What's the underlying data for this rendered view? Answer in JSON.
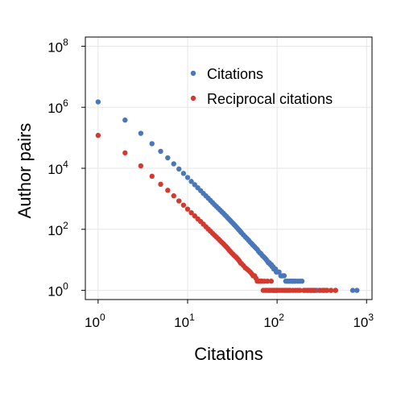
{
  "chart_data": {
    "type": "scatter",
    "xlabel": "Citations",
    "ylabel": "Author pairs",
    "xscale": "log",
    "yscale": "log",
    "xlim": [
      0.72,
      1150
    ],
    "ylim": [
      0.5,
      200000000
    ],
    "x_ticks": [
      {
        "base": "10",
        "exp": "0",
        "value": 1
      },
      {
        "base": "10",
        "exp": "1",
        "value": 10
      },
      {
        "base": "10",
        "exp": "2",
        "value": 100
      },
      {
        "base": "10",
        "exp": "3",
        "value": 1000
      }
    ],
    "y_ticks": [
      {
        "base": "10",
        "exp": "0",
        "value": 1
      },
      {
        "base": "10",
        "exp": "2",
        "value": 100
      },
      {
        "base": "10",
        "exp": "4",
        "value": 10000
      },
      {
        "base": "10",
        "exp": "6",
        "value": 1000000
      },
      {
        "base": "10",
        "exp": "8",
        "value": 100000000
      }
    ],
    "grid": true,
    "legend_position": "top-right",
    "series": [
      {
        "name": "Citations",
        "color": "#4a77b9",
        "x": [
          1,
          2,
          3,
          4,
          5,
          6,
          7,
          8,
          9,
          10,
          11,
          12,
          13,
          14,
          15,
          16,
          17,
          18,
          19,
          20,
          21,
          22,
          23,
          24,
          25,
          26,
          27,
          28,
          29,
          30,
          31,
          32,
          33,
          34,
          35,
          36,
          37,
          38,
          39,
          40,
          42,
          44,
          46,
          48,
          50,
          52,
          54,
          56,
          58,
          60,
          62,
          64,
          66,
          68,
          70,
          72,
          74,
          76,
          78,
          80,
          82,
          84,
          86,
          88,
          90,
          92,
          94,
          96,
          98,
          100,
          105,
          110,
          115,
          120,
          125,
          130,
          135,
          140,
          145,
          150,
          155,
          160,
          170,
          180,
          190,
          200,
          210,
          220,
          230,
          240,
          250,
          260,
          270,
          280,
          300,
          320,
          340,
          360,
          400,
          450,
          700,
          780
        ],
        "y": [
          1500000,
          380000,
          140000,
          64000,
          36000,
          22000,
          14000,
          9500,
          6800,
          5000,
          3700,
          2900,
          2300,
          1850,
          1500,
          1250,
          1050,
          880,
          750,
          640,
          560,
          490,
          430,
          380,
          340,
          300,
          270,
          240,
          215,
          195,
          175,
          160,
          145,
          132,
          120,
          110,
          100,
          92,
          84,
          77,
          66,
          57,
          50,
          44,
          38,
          34,
          30,
          27,
          24,
          22,
          19,
          17,
          16,
          14,
          13,
          12,
          11,
          10,
          9,
          8,
          8,
          7,
          7,
          6,
          6,
          5,
          5,
          5,
          4,
          4,
          4,
          3,
          3,
          3,
          2,
          2,
          2,
          2,
          2,
          2,
          2,
          2,
          2,
          2,
          2,
          1,
          1,
          1,
          1,
          1,
          1,
          1,
          1,
          1,
          1,
          1,
          1,
          1,
          1,
          1,
          1,
          1
        ]
      },
      {
        "name": "Reciprocal citations",
        "color": "#d23a2f",
        "x": [
          1,
          2,
          3,
          4,
          5,
          6,
          7,
          8,
          9,
          10,
          11,
          12,
          13,
          14,
          15,
          16,
          17,
          18,
          19,
          20,
          21,
          22,
          23,
          24,
          25,
          26,
          27,
          28,
          29,
          30,
          31,
          32,
          33,
          34,
          35,
          36,
          37,
          38,
          39,
          40,
          42,
          44,
          46,
          48,
          50,
          52,
          54,
          56,
          58,
          60,
          62,
          64,
          66,
          68,
          70,
          72,
          74,
          76,
          78,
          80,
          82,
          84,
          86,
          88,
          90,
          92,
          94,
          96,
          98,
          100,
          105,
          110,
          115,
          120,
          125,
          130,
          135,
          140,
          150,
          160,
          170,
          180,
          200,
          220,
          240,
          260,
          300,
          330,
          360,
          400,
          450
        ],
        "y": [
          120000,
          32000,
          12000,
          5500,
          3000,
          1900,
          1250,
          850,
          620,
          460,
          350,
          275,
          220,
          180,
          148,
          122,
          102,
          87,
          74,
          64,
          56,
          49,
          43,
          38,
          34,
          30,
          27,
          24,
          21,
          19,
          17,
          15.5,
          14,
          13,
          12,
          11,
          10,
          9,
          8,
          7.5,
          6.5,
          5.5,
          5,
          4.5,
          4,
          3.5,
          3,
          3,
          2.5,
          2,
          2,
          2,
          2,
          2,
          1,
          2,
          1,
          1,
          2,
          1,
          1,
          1,
          2,
          1,
          1,
          1,
          1,
          1,
          1,
          1,
          1,
          1,
          1,
          1,
          1,
          1,
          1,
          1,
          1,
          1,
          1,
          1,
          1,
          1,
          1,
          1,
          1,
          1,
          1,
          1,
          1
        ]
      }
    ]
  }
}
